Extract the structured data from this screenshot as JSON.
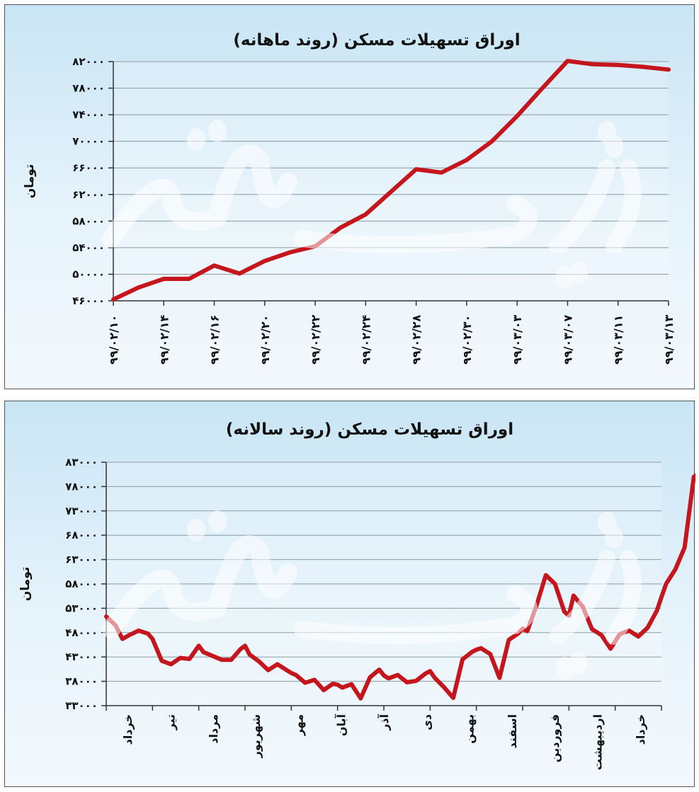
{
  "chart_data": [
    {
      "type": "line",
      "title": "اوراق تسهیلات مسکن (روند ماهانه)",
      "ylabel": "تومان",
      "xlabel": "",
      "ylim": [
        46000,
        82000
      ],
      "yticks": [
        "۴۶۰۰۰",
        "۵۰۰۰۰",
        "۵۴۰۰۰",
        "۵۸۰۰۰",
        "۶۲۰۰۰",
        "۶۶۰۰۰",
        "۷۰۰۰۰",
        "۷۴۰۰۰",
        "۷۸۰۰۰",
        "۸۲۰۰۰"
      ],
      "ytick_values": [
        46000,
        50000,
        54000,
        58000,
        62000,
        66000,
        70000,
        74000,
        78000,
        82000
      ],
      "categories": [
        "۹۹/۰۲/۱۰",
        "۹۹/۰۲/۱۴",
        "۹۹/۰۲/۱۶",
        "۹۹/۰۲/۲۰",
        "۹۹/۰۲/۲۲",
        "۹۹/۰۲/۲۴",
        "۹۹/۰۲/۲۸",
        "۹۹/۰۲/۳۰",
        "۹۹/۰۳/۰۳",
        "۹۹/۰۳/۰۷",
        "۹۹/۰۳/۱۱",
        "۹۹/۰۳/۱۳"
      ],
      "series_color": "#c4161c",
      "grid": true,
      "legend": "none",
      "x": [
        0,
        0.5,
        1,
        1.5,
        2,
        2.5,
        3,
        3.5,
        4,
        4.5,
        5,
        5.5,
        6,
        6.5,
        7,
        7.5,
        8,
        8.5,
        9,
        9.5,
        10,
        10.5,
        11
      ],
      "values": [
        46200,
        48000,
        49300,
        49300,
        51300,
        50100,
        52000,
        53300,
        54200,
        57000,
        59000,
        62400,
        65800,
        65300,
        67200,
        70000,
        73800,
        78000,
        82100,
        81600,
        81500,
        81200,
        80800
      ]
    },
    {
      "type": "line",
      "title": "اوراق تسهیلات مسکن (روند سالانه)",
      "ylabel": "تومان",
      "xlabel": "",
      "ylim": [
        33000,
        83000
      ],
      "yticks": [
        "۳۳۰۰۰",
        "۳۸۰۰۰",
        "۴۳۰۰۰",
        "۴۸۰۰۰",
        "۵۳۰۰۰",
        "۵۸۰۰۰",
        "۶۳۰۰۰",
        "۶۸۰۰۰",
        "۷۳۰۰۰",
        "۷۸۰۰۰",
        "۸۳۰۰۰"
      ],
      "ytick_values": [
        33000,
        38000,
        43000,
        48000,
        53000,
        58000,
        63000,
        68000,
        73000,
        78000,
        83000
      ],
      "categories": [
        "خرداد",
        "تیر",
        "مرداد",
        "شهریور",
        "مهر",
        "آبان",
        "آذر",
        "دی",
        "بهمن",
        "اسفند",
        "فروردین",
        "اردیبهشت",
        "خرداد"
      ],
      "series_color": "#c4161c",
      "grid": true,
      "legend": "none",
      "x": [
        0,
        0.2,
        0.35,
        0.5,
        0.7,
        0.9,
        1.0,
        1.2,
        1.4,
        1.6,
        1.8,
        2.0,
        2.1,
        2.3,
        2.5,
        2.7,
        2.9,
        3.0,
        3.1,
        3.3,
        3.5,
        3.7,
        3.9,
        4.0,
        4.1,
        4.3,
        4.5,
        4.7,
        4.9,
        5.0,
        5.1,
        5.3,
        5.5,
        5.7,
        5.9,
        6.0,
        6.1,
        6.3,
        6.5,
        6.7,
        6.9,
        7.0,
        7.1,
        7.3,
        7.5,
        7.7,
        7.9,
        8.0,
        8.1,
        8.3,
        8.5,
        8.7,
        8.9,
        9.0,
        9.1,
        9.3,
        9.5,
        9.7,
        9.9,
        10.0,
        10.1,
        10.3,
        10.5,
        10.7,
        10.9,
        11.0,
        11.1,
        11.3,
        11.5,
        11.7,
        11.9,
        12.0,
        12.1,
        12.3,
        12.5,
        12.7,
        12.9
      ],
      "values": [
        51300,
        49500,
        46700,
        47500,
        48400,
        47800,
        46700,
        42200,
        41500,
        42800,
        42600,
        45300,
        44000,
        43200,
        42400,
        42400,
        44600,
        45300,
        43500,
        42100,
        40300,
        41500,
        40300,
        39700,
        39300,
        37700,
        38300,
        36200,
        37500,
        37300,
        36700,
        37400,
        34500,
        38800,
        40400,
        39200,
        38600,
        39300,
        37800,
        38100,
        39600,
        40100,
        38700,
        36800,
        34600,
        42500,
        44000,
        44500,
        44800,
        43600,
        38700,
        46500,
        47800,
        48800,
        48300,
        53600,
        59800,
        58000,
        52300,
        51500,
        55600,
        53300,
        48700,
        47500,
        44700,
        46200,
        47700,
        48400,
        47200,
        49000,
        52500,
        55300,
        58000,
        61000,
        65500,
        80000,
        81300
      ]
    }
  ]
}
